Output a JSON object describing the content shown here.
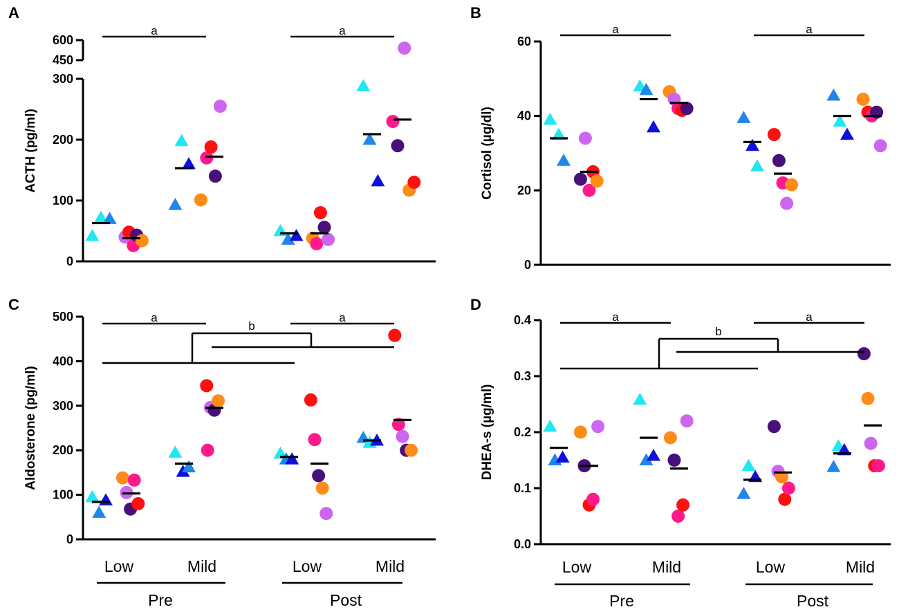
{
  "colors": {
    "cyan": "#22e6f0",
    "sky": "#1f86ea",
    "blue": "#1010dd",
    "purple": "#48107a",
    "violet": "#cc66ee",
    "pink": "#ff1a8c",
    "red": "#ff1010",
    "orange": "#ff8c18"
  },
  "chart_data": [
    {
      "panel": "A",
      "type": "scatter",
      "ylabel": "ACTH (pg/ml)",
      "yticks": [
        "0",
        "100",
        "200",
        "300",
        "450",
        "600"
      ],
      "groups": [
        "Low",
        "Mild",
        "Low",
        "Mild"
      ],
      "timepoints": [
        "Pre",
        "Post"
      ],
      "significance": [
        "a",
        "a"
      ],
      "axis_break": {
        "lower_max": 300,
        "upper_min": 450,
        "upper_max": 600
      },
      "series": [
        {
          "group": 0,
          "marker": "triangle",
          "points": [
            [
              0.82,
              42,
              "cyan"
            ],
            [
              1.0,
              72,
              "cyan"
            ],
            [
              1.18,
              70,
              "sky"
            ]
          ],
          "mean": 63
        },
        {
          "group": 0,
          "marker": "circle",
          "points": [
            [
              0.87,
              40,
              "violet"
            ],
            [
              0.95,
              48,
              "red"
            ],
            [
              1.04,
              26,
              "pink"
            ],
            [
              1.11,
              43,
              "purple"
            ],
            [
              1.22,
              34,
              "orange"
            ]
          ],
          "mean": 38
        },
        {
          "group": 1,
          "marker": "triangle",
          "points": [
            [
              0.82,
              93,
              "sky"
            ],
            [
              0.95,
              198,
              "cyan"
            ],
            [
              1.1,
              160,
              "blue"
            ]
          ],
          "mean": 153
        },
        {
          "group": 1,
          "marker": "circle",
          "points": [
            [
              0.84,
              170,
              "pink"
            ],
            [
              0.93,
              188,
              "red"
            ],
            [
              1.02,
              140,
              "purple"
            ],
            [
              1.12,
              255,
              "violet"
            ],
            [
              0.72,
              101,
              "orange"
            ]
          ],
          "mean": 172
        },
        {
          "group": 2,
          "marker": "triangle",
          "points": [
            [
              0.82,
              50,
              "cyan"
            ],
            [
              0.98,
              36,
              "sky"
            ],
            [
              1.15,
              42,
              "blue"
            ]
          ],
          "mean": 46
        },
        {
          "group": 2,
          "marker": "circle",
          "points": [
            [
              0.86,
              38,
              "orange"
            ],
            [
              0.94,
              29,
              "pink"
            ],
            [
              1.02,
              80,
              "red"
            ],
            [
              1.1,
              56,
              "purple"
            ],
            [
              1.18,
              36,
              "violet"
            ]
          ],
          "mean": 46
        },
        {
          "group": 3,
          "marker": "triangle",
          "points": [
            [
              0.82,
              288,
              "cyan"
            ],
            [
              0.95,
              200,
              "sky"
            ],
            [
              1.12,
              132,
              "blue"
            ]
          ],
          "mean": 209
        },
        {
          "group": 3,
          "marker": "circle",
          "points": [
            [
              0.8,
              230,
              "pink"
            ],
            [
              0.9,
              190,
              "purple"
            ],
            [
              1.04,
              540,
              "violet"
            ],
            [
              1.14,
              117,
              "orange"
            ],
            [
              1.24,
              130,
              "red"
            ]
          ],
          "mean": 233
        }
      ]
    },
    {
      "panel": "B",
      "type": "scatter",
      "ylabel": "Cortisol (µg/dl)",
      "yticks": [
        "0",
        "20",
        "40",
        "60"
      ],
      "ylim": [
        0,
        60
      ],
      "groups": [
        "Low",
        "Mild",
        "Low",
        "Mild"
      ],
      "timepoints": [
        "Pre",
        "Post"
      ],
      "significance": [
        "a",
        "a"
      ],
      "series": [
        {
          "group": 0,
          "marker": "triangle",
          "points": [
            [
              0.82,
              39,
              "cyan"
            ],
            [
              1.0,
              35,
              "cyan"
            ],
            [
              1.1,
              28,
              "sky"
            ]
          ],
          "mean": 34
        },
        {
          "group": 0,
          "marker": "circle",
          "points": [
            [
              0.82,
              23,
              "purple"
            ],
            [
              0.92,
              34,
              "violet"
            ],
            [
              1.0,
              20,
              "pink"
            ],
            [
              1.08,
              25,
              "red"
            ],
            [
              1.16,
              22.5,
              "orange"
            ]
          ],
          "mean": 25
        },
        {
          "group": 1,
          "marker": "triangle",
          "points": [
            [
              0.82,
              48,
              "cyan"
            ],
            [
              0.95,
              47,
              "sky"
            ],
            [
              1.1,
              37,
              "blue"
            ]
          ],
          "mean": 44.5
        },
        {
          "group": 1,
          "marker": "circle",
          "points": [
            [
              0.8,
              46.5,
              "orange"
            ],
            [
              0.9,
              44.5,
              "violet"
            ],
            [
              0.98,
              42,
              "pink"
            ],
            [
              1.06,
              41.5,
              "red"
            ],
            [
              1.16,
              42,
              "purple"
            ]
          ],
          "mean": 43.5
        },
        {
          "group": 2,
          "marker": "triangle",
          "points": [
            [
              0.82,
              39.5,
              "sky"
            ],
            [
              1.0,
              32,
              "blue"
            ],
            [
              1.1,
              26.5,
              "cyan"
            ]
          ],
          "mean": 33
        },
        {
          "group": 2,
          "marker": "circle",
          "points": [
            [
              0.82,
              35,
              "red"
            ],
            [
              0.92,
              28,
              "purple"
            ],
            [
              1.0,
              22,
              "pink"
            ],
            [
              1.08,
              16.5,
              "violet"
            ],
            [
              1.18,
              21.5,
              "orange"
            ]
          ],
          "mean": 24.5
        },
        {
          "group": 3,
          "marker": "triangle",
          "points": [
            [
              0.82,
              45.5,
              "sky"
            ],
            [
              0.95,
              38.5,
              "cyan"
            ],
            [
              1.1,
              35,
              "blue"
            ]
          ],
          "mean": 40
        },
        {
          "group": 3,
          "marker": "circle",
          "points": [
            [
              0.8,
              44.5,
              "orange"
            ],
            [
              0.9,
              41,
              "red"
            ],
            [
              0.98,
              40,
              "pink"
            ],
            [
              1.08,
              41,
              "purple"
            ],
            [
              1.16,
              32,
              "violet"
            ]
          ],
          "mean": 40
        }
      ]
    },
    {
      "panel": "C",
      "type": "scatter",
      "ylabel": "Aldosterone  (pg/ml)",
      "yticks": [
        "0",
        "100",
        "200",
        "300",
        "400",
        "500"
      ],
      "ylim": [
        0,
        500
      ],
      "groups": [
        "Low",
        "Mild",
        "Low",
        "Mild"
      ],
      "timepoints": [
        "Pre",
        "Post"
      ],
      "significance": [
        "a",
        "a",
        "b"
      ],
      "series": [
        {
          "group": 0,
          "marker": "triangle",
          "points": [
            [
              0.82,
              95,
              "cyan"
            ],
            [
              0.96,
              60,
              "sky"
            ],
            [
              1.1,
              88,
              "blue"
            ]
          ],
          "mean": 84
        },
        {
          "group": 0,
          "marker": "circle",
          "points": [
            [
              0.82,
              138,
              "orange"
            ],
            [
              0.9,
              105,
              "violet"
            ],
            [
              0.98,
              68,
              "purple"
            ],
            [
              1.06,
              133,
              "pink"
            ],
            [
              1.14,
              80,
              "red"
            ]
          ],
          "mean": 103
        },
        {
          "group": 1,
          "marker": "triangle",
          "points": [
            [
              0.82,
              195,
              "cyan"
            ],
            [
              0.98,
              152,
              "blue"
            ],
            [
              1.1,
              162,
              "sky"
            ]
          ],
          "mean": 170
        },
        {
          "group": 1,
          "marker": "circle",
          "points": [
            [
              0.84,
              345,
              "red"
            ],
            [
              0.92,
              296,
              "violet"
            ],
            [
              1.0,
              290,
              "purple"
            ],
            [
              1.08,
              311,
              "orange"
            ],
            [
              0.86,
              200,
              "pink"
            ]
          ],
          "mean": 295
        },
        {
          "group": 2,
          "marker": "triangle",
          "points": [
            [
              0.82,
              193,
              "cyan"
            ],
            [
              0.94,
              180,
              "sky"
            ],
            [
              1.06,
              180,
              "blue"
            ]
          ],
          "mean": 185
        },
        {
          "group": 2,
          "marker": "circle",
          "points": [
            [
              0.82,
              313,
              "red"
            ],
            [
              0.9,
              224,
              "pink"
            ],
            [
              0.98,
              143,
              "purple"
            ],
            [
              1.06,
              115,
              "orange"
            ],
            [
              1.14,
              58,
              "violet"
            ]
          ],
          "mean": 170
        },
        {
          "group": 3,
          "marker": "triangle",
          "points": [
            [
              0.82,
              228,
              "sky"
            ],
            [
              0.95,
              217,
              "cyan"
            ],
            [
              1.1,
              222,
              "blue"
            ]
          ],
          "mean": 222
        },
        {
          "group": 3,
          "marker": "circle",
          "points": [
            [
              0.84,
              458,
              "red"
            ],
            [
              0.92,
              258,
              "pink"
            ],
            [
              1.0,
              231,
              "violet"
            ],
            [
              1.08,
              200,
              "purple"
            ],
            [
              1.18,
              200,
              "orange"
            ]
          ],
          "mean": 268
        }
      ]
    },
    {
      "panel": "D",
      "type": "scatter",
      "ylabel": "DHEA-s (µg/ml)",
      "yticks": [
        "0.0",
        "0.1",
        "0.2",
        "0.3",
        "0.4"
      ],
      "ylim": [
        0,
        0.4
      ],
      "groups": [
        "Low",
        "Mild",
        "Low",
        "Mild"
      ],
      "timepoints": [
        "Pre",
        "Post"
      ],
      "significance": [
        "a",
        "a",
        "b"
      ],
      "series": [
        {
          "group": 0,
          "marker": "triangle",
          "points": [
            [
              0.82,
              0.21,
              "cyan"
            ],
            [
              0.92,
              0.15,
              "sky"
            ],
            [
              1.08,
              0.155,
              "blue"
            ]
          ],
          "mean": 0.172
        },
        {
          "group": 0,
          "marker": "circle",
          "points": [
            [
              0.82,
              0.2,
              "orange"
            ],
            [
              0.9,
              0.14,
              "purple"
            ],
            [
              1.0,
              0.07,
              "red"
            ],
            [
              1.08,
              0.08,
              "pink"
            ],
            [
              1.18,
              0.21,
              "violet"
            ]
          ],
          "mean": 0.14
        },
        {
          "group": 1,
          "marker": "triangle",
          "points": [
            [
              0.82,
              0.258,
              "cyan"
            ],
            [
              0.95,
              0.15,
              "sky"
            ],
            [
              1.1,
              0.158,
              "blue"
            ]
          ],
          "mean": 0.19
        },
        {
          "group": 1,
          "marker": "circle",
          "points": [
            [
              0.82,
              0.19,
              "orange"
            ],
            [
              0.9,
              0.15,
              "purple"
            ],
            [
              0.98,
              0.05,
              "pink"
            ],
            [
              1.08,
              0.07,
              "red"
            ],
            [
              1.16,
              0.22,
              "violet"
            ]
          ],
          "mean": 0.135
        },
        {
          "group": 2,
          "marker": "triangle",
          "points": [
            [
              0.82,
              0.09,
              "sky"
            ],
            [
              0.92,
              0.14,
              "cyan"
            ],
            [
              1.06,
              0.12,
              "blue"
            ]
          ],
          "mean": 0.115
        },
        {
          "group": 2,
          "marker": "circle",
          "points": [
            [
              0.82,
              0.21,
              "purple"
            ],
            [
              0.9,
              0.13,
              "violet"
            ],
            [
              0.98,
              0.12,
              "orange"
            ],
            [
              1.04,
              0.08,
              "red"
            ],
            [
              1.12,
              0.1,
              "pink"
            ]
          ],
          "mean": 0.128
        },
        {
          "group": 3,
          "marker": "triangle",
          "points": [
            [
              0.82,
              0.138,
              "sky"
            ],
            [
              0.92,
              0.175,
              "cyan"
            ],
            [
              1.04,
              0.168,
              "blue"
            ]
          ],
          "mean": 0.162
        },
        {
          "group": 3,
          "marker": "circle",
          "points": [
            [
              0.82,
              0.34,
              "purple"
            ],
            [
              0.9,
              0.26,
              "orange"
            ],
            [
              0.96,
              0.18,
              "violet"
            ],
            [
              1.04,
              0.14,
              "red"
            ],
            [
              1.12,
              0.14,
              "pink"
            ]
          ],
          "mean": 0.212
        }
      ]
    }
  ]
}
